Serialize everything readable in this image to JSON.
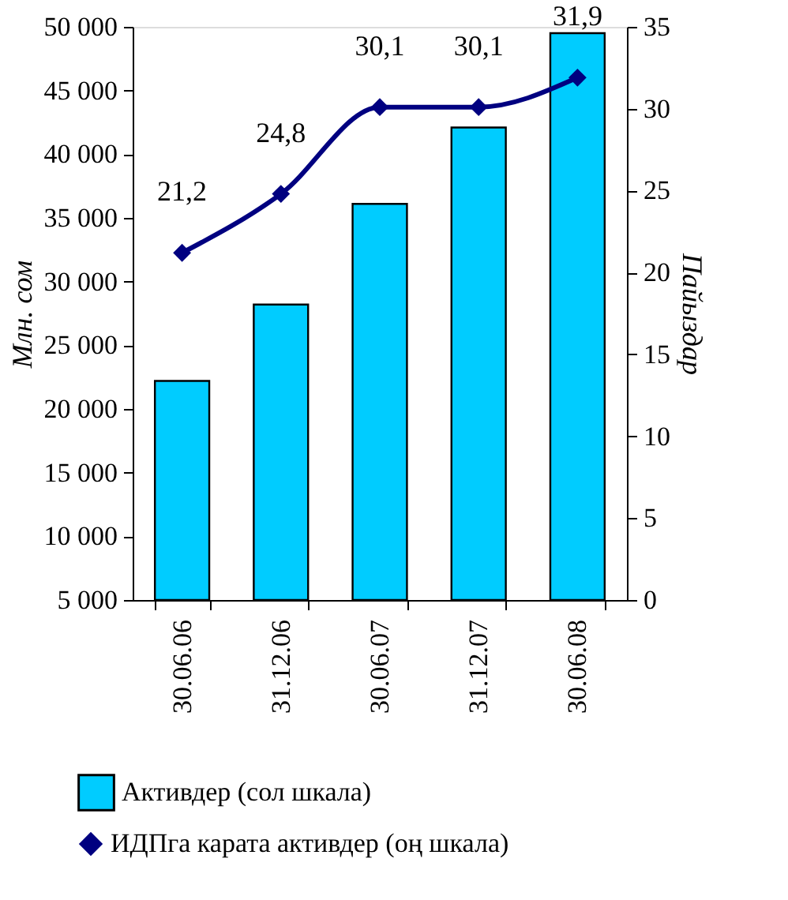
{
  "chart_data": {
    "type": "bar",
    "categories": [
      "30.06.06",
      "31.12.06",
      "30.06.07",
      "31.12.07",
      "30.06.08"
    ],
    "ylabel": "Млн. сом",
    "y2label": "Пайыздар",
    "series": [
      {
        "name": "Активдер (сол шкала)",
        "color": "#00ccff",
        "values": [
          22200,
          28200,
          36100,
          42100,
          49500
        ]
      },
      {
        "name": "ИДПга карата активдер (оң шкала)",
        "type": "line",
        "axis": "y2",
        "color": "#000080",
        "values": [
          21.2,
          24.8,
          30.1,
          30.1,
          31.9
        ],
        "value_labels": [
          "21,2",
          "24,8",
          "30,1",
          "30,1",
          "31,9"
        ],
        "marker": "diamond"
      }
    ],
    "ylim": [
      5000,
      50000
    ],
    "yticks": [
      {
        "value": 5000,
        "label": "5 000"
      },
      {
        "value": 10000,
        "label": "10 000"
      },
      {
        "value": 15000,
        "label": "15 000"
      },
      {
        "value": 20000,
        "label": "20 000"
      },
      {
        "value": 25000,
        "label": "25 000"
      },
      {
        "value": 30000,
        "label": "30 000"
      },
      {
        "value": 35000,
        "label": "35 000"
      },
      {
        "value": 40000,
        "label": "40 000"
      },
      {
        "value": 45000,
        "label": "45 000"
      },
      {
        "value": 50000,
        "label": "50 000"
      }
    ],
    "y2lim": [
      0,
      35
    ],
    "y2ticks": [
      0,
      5,
      10,
      15,
      20,
      25,
      30,
      35
    ],
    "grid": false,
    "legend": "bottom"
  }
}
